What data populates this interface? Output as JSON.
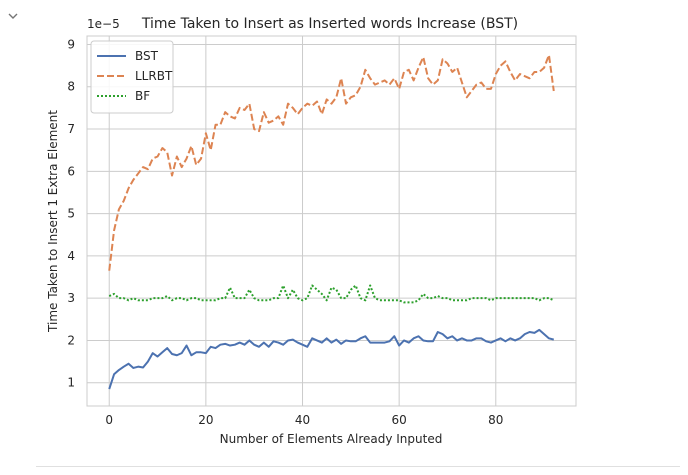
{
  "cell": {
    "collapse_icon": "chevron-down-icon"
  },
  "chart_data": {
    "type": "line",
    "title": "Time Taken to Insert as Inserted words Increase (BST)",
    "xlabel": "Number of Elements Already Inputed",
    "ylabel": "Time Taken to Insert 1 Extra Element",
    "y_offset_label": "1e−5",
    "xlim": [
      -4.6,
      96.6
    ],
    "ylim": [
      0.45,
      9.2
    ],
    "x_ticks": [
      0,
      20,
      40,
      60,
      80
    ],
    "x_tick_labels": [
      "0",
      "20",
      "40",
      "60",
      "80"
    ],
    "y_ticks": [
      1,
      2,
      3,
      4,
      5,
      6,
      7,
      8,
      9
    ],
    "y_tick_labels": [
      "1",
      "2",
      "3",
      "4",
      "5",
      "6",
      "7",
      "8",
      "9"
    ],
    "grid": true,
    "legend_position": "top-left",
    "x": [
      0,
      1,
      2,
      3,
      4,
      5,
      6,
      7,
      8,
      9,
      10,
      11,
      12,
      13,
      14,
      15,
      16,
      17,
      18,
      19,
      20,
      21,
      22,
      23,
      24,
      25,
      26,
      27,
      28,
      29,
      30,
      31,
      32,
      33,
      34,
      35,
      36,
      37,
      38,
      39,
      40,
      41,
      42,
      43,
      44,
      45,
      46,
      47,
      48,
      49,
      50,
      51,
      52,
      53,
      54,
      55,
      56,
      57,
      58,
      59,
      60,
      61,
      62,
      63,
      64,
      65,
      66,
      67,
      68,
      69,
      70,
      71,
      72,
      73,
      74,
      75,
      76,
      77,
      78,
      79,
      80,
      81,
      82,
      83,
      84,
      85,
      86,
      87,
      88,
      89,
      90,
      91,
      92
    ],
    "series": [
      {
        "name": "BST",
        "color": "#4c72b0",
        "style": "solid",
        "values": [
          0.85,
          1.2,
          1.3,
          1.38,
          1.45,
          1.35,
          1.38,
          1.36,
          1.5,
          1.7,
          1.62,
          1.72,
          1.82,
          1.68,
          1.65,
          1.7,
          1.88,
          1.65,
          1.72,
          1.72,
          1.7,
          1.85,
          1.82,
          1.9,
          1.92,
          1.88,
          1.9,
          1.95,
          1.9,
          2.0,
          1.9,
          1.85,
          1.95,
          1.85,
          1.98,
          1.95,
          1.9,
          2.0,
          2.02,
          1.95,
          1.9,
          1.85,
          2.05,
          2.0,
          1.95,
          2.05,
          1.95,
          2.02,
          1.92,
          2.0,
          1.98,
          1.98,
          2.05,
          2.1,
          1.95,
          1.95,
          1.95,
          1.95,
          1.98,
          2.1,
          1.88,
          2.0,
          1.95,
          2.05,
          2.1,
          2.0,
          1.98,
          1.98,
          2.2,
          2.15,
          2.05,
          2.1,
          2.0,
          2.05,
          2.0,
          2.0,
          2.05,
          2.05,
          1.98,
          1.95,
          2.0,
          2.05,
          1.98,
          2.05,
          2.0,
          2.05,
          2.15,
          2.2,
          2.18,
          2.25,
          2.15,
          2.05,
          2.02
        ]
      },
      {
        "name": "LLRBT",
        "color": "#dd8452",
        "style": "dashed",
        "values": [
          3.65,
          4.6,
          5.1,
          5.3,
          5.6,
          5.8,
          5.95,
          6.1,
          6.05,
          6.3,
          6.35,
          6.55,
          6.45,
          5.9,
          6.35,
          6.1,
          6.3,
          6.6,
          6.15,
          6.3,
          6.9,
          6.5,
          7.1,
          7.1,
          7.4,
          7.3,
          7.25,
          7.5,
          7.45,
          7.6,
          7.0,
          6.95,
          7.4,
          7.15,
          7.2,
          7.3,
          7.1,
          7.6,
          7.5,
          7.35,
          7.5,
          7.6,
          7.55,
          7.65,
          7.35,
          7.7,
          7.6,
          7.75,
          8.2,
          7.6,
          7.75,
          7.8,
          8.0,
          8.4,
          8.2,
          8.05,
          8.1,
          8.15,
          8.05,
          8.2,
          7.95,
          8.35,
          8.4,
          8.15,
          8.45,
          8.7,
          8.2,
          8.05,
          8.15,
          8.65,
          8.55,
          8.35,
          8.45,
          8.1,
          7.75,
          7.9,
          8.05,
          8.1,
          7.95,
          7.95,
          8.3,
          8.5,
          8.6,
          8.35,
          8.15,
          8.3,
          8.25,
          8.2,
          8.35,
          8.35,
          8.45,
          8.75,
          7.9
        ]
      },
      {
        "name": "BF",
        "color": "#2ca02c",
        "style": "dotted",
        "values": [
          3.05,
          3.1,
          3.0,
          3.0,
          2.95,
          3.0,
          2.95,
          2.95,
          2.95,
          3.0,
          3.0,
          3.0,
          3.05,
          2.95,
          3.0,
          3.0,
          2.95,
          3.0,
          3.0,
          2.95,
          2.95,
          2.95,
          2.95,
          3.0,
          3.0,
          3.25,
          3.0,
          3.0,
          3.0,
          3.2,
          3.0,
          2.95,
          2.95,
          2.95,
          3.0,
          3.0,
          3.3,
          3.0,
          3.2,
          3.0,
          2.95,
          3.0,
          3.3,
          3.2,
          3.1,
          2.95,
          3.25,
          3.2,
          3.0,
          3.0,
          3.2,
          3.3,
          3.0,
          2.95,
          3.3,
          3.0,
          2.95,
          2.95,
          2.95,
          2.95,
          2.95,
          2.9,
          2.9,
          2.9,
          2.95,
          3.1,
          3.0,
          3.0,
          3.05,
          3.0,
          3.0,
          2.95,
          2.95,
          2.95,
          2.95,
          3.0,
          3.0,
          3.0,
          3.0,
          2.95,
          3.0,
          3.0,
          3.0,
          3.0,
          3.0,
          3.0,
          3.0,
          3.0,
          3.0,
          2.95,
          3.0,
          3.0,
          2.95
        ]
      }
    ]
  }
}
